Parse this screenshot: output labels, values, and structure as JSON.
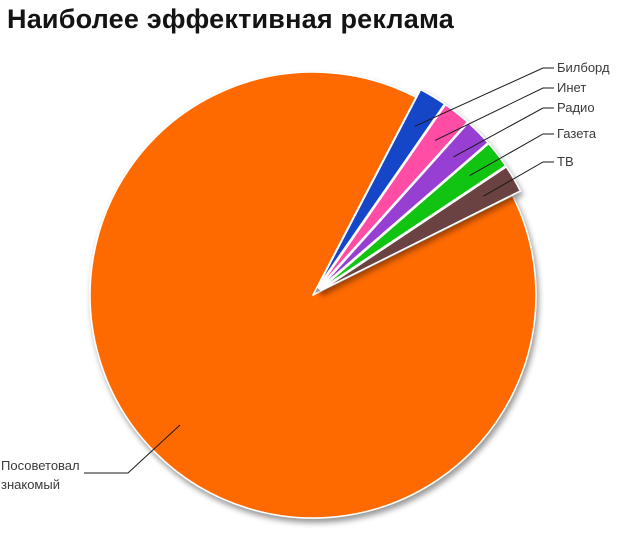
{
  "title": "Наиболее эффективная реклама",
  "chart_data": {
    "type": "pie",
    "title": "Наиболее эффективная реклама",
    "unit": "percent",
    "start_angle_deg": 27.5,
    "clockwise": true,
    "slices": [
      {
        "label": "Билборд",
        "value": 2,
        "color": "#1646C8"
      },
      {
        "label": "Инет",
        "value": 2,
        "color": "#FF4DA6"
      },
      {
        "label": "Радио",
        "value": 2,
        "color": "#973FD3"
      },
      {
        "label": "Газета",
        "value": 2,
        "color": "#12C412"
      },
      {
        "label": "ТВ",
        "value": 2,
        "color": "#6B4242"
      },
      {
        "label": "Посоветовал знакомый",
        "value": 90,
        "color": "#FF6A00"
      }
    ],
    "legend_position": "callout-labels",
    "background": "#FFFFFF",
    "shadow": true
  }
}
